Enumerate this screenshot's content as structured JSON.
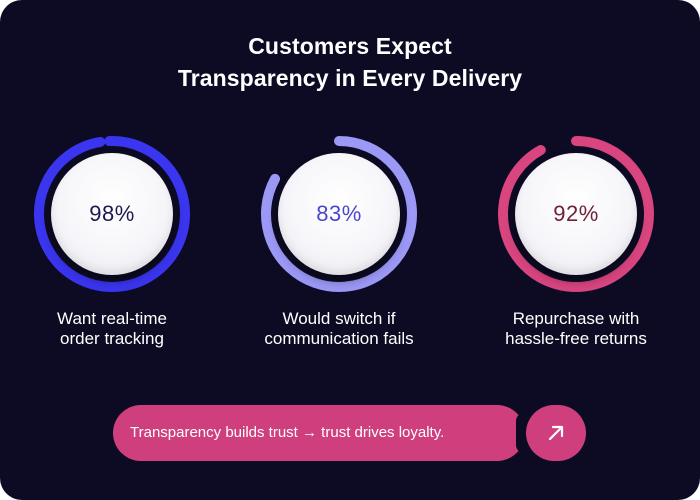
{
  "title": {
    "line1": "Customers Expect",
    "line2": "Transparency in Every Delivery"
  },
  "chart_data": {
    "type": "donut-gauge",
    "max": 100,
    "items": [
      {
        "value": 98,
        "display": "98%",
        "label_line1": "Want real-time",
        "label_line2": "order tracking",
        "ring_color": "#3a35ee",
        "track_color": "#3a35ee",
        "text_color": "#1c1a4e"
      },
      {
        "value": 83,
        "display": "83%",
        "label_line1": "Would switch if",
        "label_line2": "communication fails",
        "ring_color": "#9b98f6",
        "track_color": "#9b98f6",
        "text_color": "#4a47c9"
      },
      {
        "value": 92,
        "display": "92%",
        "label_line1": "Repurchase with",
        "label_line2": "hassle-free returns",
        "ring_color": "#d8457f",
        "track_color": "#d8457f",
        "text_color": "#6e1f36"
      }
    ]
  },
  "cta": {
    "text": "Transparency builds trust → trust drives loyalty.",
    "icon": "arrow-up-right-icon",
    "color": "#cf3f7e"
  }
}
